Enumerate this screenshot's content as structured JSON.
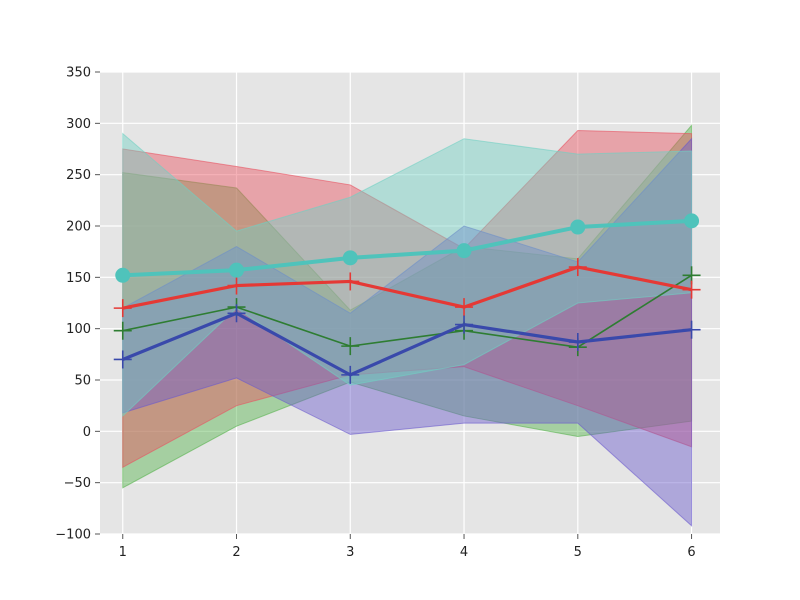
{
  "chart_data": {
    "type": "line",
    "title": "",
    "xlabel": "",
    "ylabel": "",
    "x": [
      1,
      2,
      3,
      4,
      5,
      6
    ],
    "xlim": [
      0.8,
      6.25
    ],
    "ylim": [
      -100,
      350
    ],
    "x_ticks": [
      "1",
      "2",
      "3",
      "4",
      "5",
      "6"
    ],
    "y_ticks": [
      "−100",
      "−50",
      "0",
      "50",
      "100",
      "150",
      "200",
      "250",
      "300",
      "350"
    ],
    "y_tick_values": [
      -100,
      -50,
      0,
      50,
      100,
      150,
      200,
      250,
      300,
      350
    ],
    "grid": true,
    "background": "#e5e5e5",
    "series": [
      {
        "values": [
          98,
          121,
          83,
          98,
          82,
          152
        ],
        "lower": [
          -55,
          5,
          48,
          15,
          -5,
          10
        ],
        "upper": [
          252,
          237,
          118,
          180,
          168,
          298
        ],
        "color": "#2e7d32",
        "fill": "#56b34d",
        "marker": "plus"
      },
      {
        "values": [
          120,
          142,
          146,
          121,
          160,
          138
        ],
        "lower": [
          -35,
          25,
          55,
          63,
          25,
          -15
        ],
        "upper": [
          275,
          258,
          240,
          178,
          293,
          290
        ],
        "color": "#e53935",
        "fill": "#e85260",
        "marker": "plus"
      },
      {
        "values": [
          70,
          115,
          55,
          104,
          87,
          99
        ],
        "lower": [
          18,
          52,
          -3,
          8,
          8,
          -92
        ],
        "upper": [
          120,
          180,
          115,
          200,
          165,
          285
        ],
        "color": "#3949ab",
        "fill": "#6a5acd",
        "marker": "plus"
      },
      {
        "values": [
          152,
          157,
          169,
          176,
          199,
          205
        ],
        "lower": [
          15,
          120,
          45,
          65,
          125,
          135
        ],
        "upper": [
          290,
          195,
          228,
          285,
          270,
          273
        ],
        "color": "#4fc3bb",
        "fill": "#70d0c3",
        "marker": "circle"
      }
    ]
  }
}
